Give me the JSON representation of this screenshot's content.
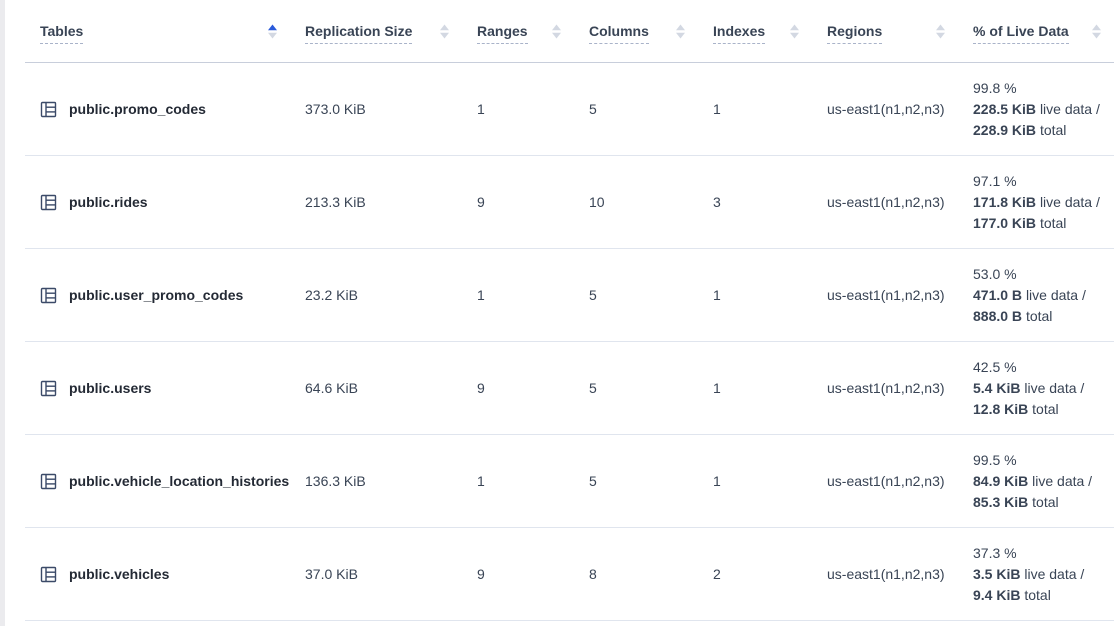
{
  "colors": {
    "sort_active": "#2a5ada",
    "sort_inactive": "#d3d8e2",
    "header_text": "#394455",
    "body_text": "#394455",
    "row_border": "#e0e5ee",
    "header_border": "#c8cedb"
  },
  "table": {
    "columns": [
      {
        "id": "tables",
        "label": "Tables",
        "sort": "asc"
      },
      {
        "id": "replication-size",
        "label": "Replication Size",
        "sort": "none"
      },
      {
        "id": "ranges",
        "label": "Ranges",
        "sort": "none"
      },
      {
        "id": "columns",
        "label": "Columns",
        "sort": "none"
      },
      {
        "id": "indexes",
        "label": "Indexes",
        "sort": "none"
      },
      {
        "id": "regions",
        "label": "Regions",
        "sort": "none"
      },
      {
        "id": "live-data",
        "label": "% of Live Data",
        "sort": "none"
      }
    ],
    "labels": {
      "live_suffix": "live data /",
      "total_suffix": "total"
    },
    "rows": [
      {
        "name": "public.promo_codes",
        "replication_size": "373.0 KiB",
        "ranges": "1",
        "columns": "5",
        "indexes": "1",
        "regions": "us-east1(n1,n2,n3)",
        "live_percent": "99.8 %",
        "live_size": "228.5 KiB",
        "total_size": "228.9 KiB"
      },
      {
        "name": "public.rides",
        "replication_size": "213.3 KiB",
        "ranges": "9",
        "columns": "10",
        "indexes": "3",
        "regions": "us-east1(n1,n2,n3)",
        "live_percent": "97.1 %",
        "live_size": "171.8 KiB",
        "total_size": "177.0 KiB"
      },
      {
        "name": "public.user_promo_codes",
        "replication_size": "23.2 KiB",
        "ranges": "1",
        "columns": "5",
        "indexes": "1",
        "regions": "us-east1(n1,n2,n3)",
        "live_percent": "53.0 %",
        "live_size": "471.0 B",
        "total_size": "888.0 B"
      },
      {
        "name": "public.users",
        "replication_size": "64.6 KiB",
        "ranges": "9",
        "columns": "5",
        "indexes": "1",
        "regions": "us-east1(n1,n2,n3)",
        "live_percent": "42.5 %",
        "live_size": "5.4 KiB",
        "total_size": "12.8 KiB"
      },
      {
        "name": "public.vehicle_location_histories",
        "replication_size": "136.3 KiB",
        "ranges": "1",
        "columns": "5",
        "indexes": "1",
        "regions": "us-east1(n1,n2,n3)",
        "live_percent": "99.5 %",
        "live_size": "84.9 KiB",
        "total_size": "85.3 KiB"
      },
      {
        "name": "public.vehicles",
        "replication_size": "37.0 KiB",
        "ranges": "9",
        "columns": "8",
        "indexes": "2",
        "regions": "us-east1(n1,n2,n3)",
        "live_percent": "37.3 %",
        "live_size": "3.5 KiB",
        "total_size": "9.4 KiB"
      }
    ]
  }
}
